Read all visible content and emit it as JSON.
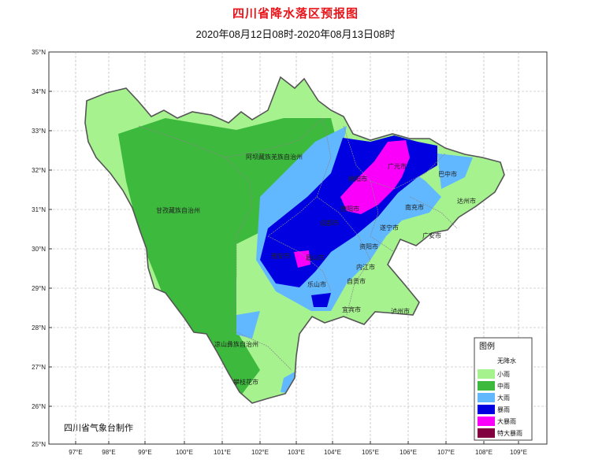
{
  "title": "四川省降水落区预报图",
  "subtitle": "2020年08月12日08时-2020年08月13日08时",
  "credit": "四川省气象台制作",
  "lat_labels": [
    "35°N",
    "34°N",
    "33°N",
    "32°N",
    "31°N",
    "30°N",
    "29°N",
    "28°N",
    "27°N",
    "26°N",
    "25°N"
  ],
  "lon_labels": [
    "97°E",
    "98°E",
    "99°E",
    "100°E",
    "101°E",
    "102°E",
    "103°E",
    "104°E",
    "105°E",
    "106°E",
    "107°E",
    "108°E",
    "109°E"
  ],
  "cities": [
    {
      "name": "阿坝藏族羌族自治州",
      "key": "aba"
    },
    {
      "name": "甘孜藏族自治州",
      "key": "ganzi"
    },
    {
      "name": "广元市",
      "key": "guangyuan"
    },
    {
      "name": "巴中市",
      "key": "bazhong"
    },
    {
      "name": "绵阳市",
      "key": "mianyang"
    },
    {
      "name": "达州市",
      "key": "dazhou"
    },
    {
      "name": "德阳市",
      "key": "deyang"
    },
    {
      "name": "南充市",
      "key": "nanchong"
    },
    {
      "name": "成都市",
      "key": "chengdu"
    },
    {
      "name": "遂宁市",
      "key": "suining"
    },
    {
      "name": "广安市",
      "key": "guangan"
    },
    {
      "name": "资阳市",
      "key": "ziyang"
    },
    {
      "name": "雅安市",
      "key": "yaan"
    },
    {
      "name": "眉山市",
      "key": "meishan"
    },
    {
      "name": "内江市",
      "key": "neijiang"
    },
    {
      "name": "乐山市",
      "key": "leshan"
    },
    {
      "name": "自贡市",
      "key": "zigong"
    },
    {
      "name": "宜宾市",
      "key": "yibin"
    },
    {
      "name": "泸州市",
      "key": "luzhou"
    },
    {
      "name": "凉山彝族自治州",
      "key": "liangshan"
    },
    {
      "name": "攀枝花市",
      "key": "panzhihua"
    }
  ],
  "legend": {
    "title": "图例",
    "items": [
      {
        "label": "无降水",
        "color": "#ffffff"
      },
      {
        "label": "小雨",
        "color": "#a6f28f"
      },
      {
        "label": "中雨",
        "color": "#3dba3d"
      },
      {
        "label": "大雨",
        "color": "#61b8ff"
      },
      {
        "label": "暴雨",
        "color": "#0000e1"
      },
      {
        "label": "大暴雨",
        "color": "#fa00fa"
      },
      {
        "label": "特大暴雨",
        "color": "#800040"
      }
    ]
  }
}
